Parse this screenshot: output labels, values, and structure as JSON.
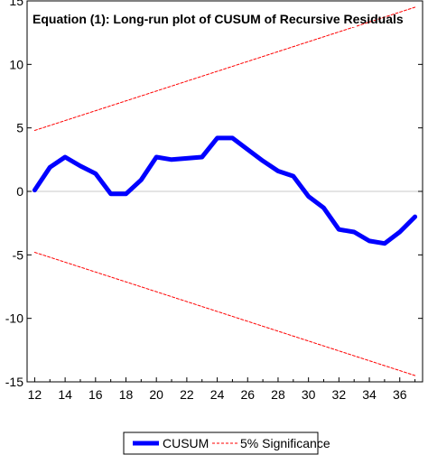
{
  "chart_data": {
    "type": "line",
    "title": "Equation (1): Long-run plot of CUSUM of Recursive Residuals",
    "xlabel": "",
    "ylabel": "",
    "xlim": [
      11.5,
      37.5
    ],
    "ylim": [
      -15,
      15
    ],
    "x_ticks": [
      12,
      14,
      16,
      18,
      20,
      22,
      24,
      26,
      28,
      30,
      32,
      34,
      36
    ],
    "y_ticks": [
      15,
      10,
      5,
      0,
      -5,
      -10,
      -15
    ],
    "grid": false,
    "zero_line": true,
    "legend_position": "bottom",
    "series": [
      {
        "name": "CUSUM",
        "color": "#0000ff",
        "style": "solid-thick",
        "x": [
          12,
          13,
          14,
          15,
          16,
          17,
          18,
          19,
          20,
          21,
          22,
          23,
          24,
          25,
          26,
          27,
          28,
          29,
          30,
          31,
          32,
          33,
          34,
          35,
          36,
          37
        ],
        "y": [
          0.1,
          1.9,
          2.7,
          2.0,
          1.4,
          -0.2,
          -0.2,
          0.9,
          2.7,
          2.5,
          2.6,
          2.7,
          4.2,
          4.2,
          3.3,
          2.4,
          1.6,
          1.2,
          -0.4,
          -1.3,
          -3.0,
          -3.2,
          -3.9,
          -4.1,
          -3.2,
          -2.0
        ]
      },
      {
        "name": "5% Significance",
        "color": "#ff0000",
        "style": "dashed",
        "x": [
          12,
          37
        ],
        "y": [
          4.8,
          14.5
        ]
      },
      {
        "name": "",
        "color": "#ff0000",
        "style": "dashed",
        "x": [
          12,
          37
        ],
        "y": [
          -4.8,
          -14.5
        ]
      }
    ]
  }
}
